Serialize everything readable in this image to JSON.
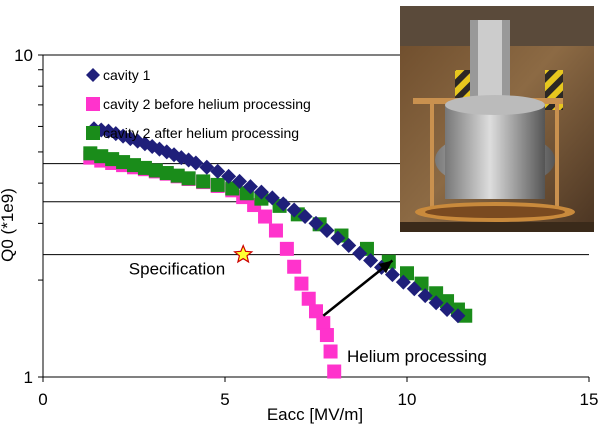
{
  "chart_data": {
    "type": "scatter",
    "title": "",
    "xlabel": "Eacc [MV/m]",
    "ylabel": "Q0 (*1e9)",
    "xlim": [
      0,
      15
    ],
    "ylim": [
      1,
      10
    ],
    "yscale": "log",
    "grid": "horizontal",
    "legend_position": "top-left",
    "x_ticks": [
      "0",
      "5",
      "10",
      "15"
    ],
    "y_ticks": [
      "1",
      "10"
    ],
    "series": [
      {
        "name": "cavity 1",
        "marker": "diamond",
        "color": "#1f1f7a",
        "x": [
          1.4,
          1.6,
          1.8,
          2.0,
          2.2,
          2.4,
          2.6,
          2.8,
          3.0,
          3.2,
          3.4,
          3.6,
          3.8,
          4.0,
          4.2,
          4.5,
          4.8,
          5.1,
          5.4,
          5.7,
          6.0,
          6.3,
          6.6,
          6.9,
          7.2,
          7.5,
          7.8,
          8.1,
          8.4,
          8.7,
          9.0,
          9.3,
          9.6,
          9.9,
          10.2,
          10.5,
          10.8,
          11.1,
          11.4
        ],
        "y": [
          5.9,
          5.85,
          5.8,
          5.7,
          5.6,
          5.5,
          5.4,
          5.3,
          5.2,
          5.1,
          5.0,
          4.9,
          4.8,
          4.72,
          4.62,
          4.48,
          4.35,
          4.2,
          4.05,
          3.9,
          3.75,
          3.6,
          3.45,
          3.3,
          3.15,
          3.0,
          2.85,
          2.7,
          2.56,
          2.42,
          2.3,
          2.19,
          2.08,
          1.97,
          1.88,
          1.79,
          1.7,
          1.62,
          1.55
        ]
      },
      {
        "name": "cavity 2 before helium processing",
        "marker": "square",
        "color": "#ff33cc",
        "x": [
          1.3,
          1.6,
          1.9,
          2.2,
          2.5,
          2.8,
          3.1,
          3.4,
          3.7,
          4.0,
          4.4,
          4.8,
          5.2,
          5.5,
          5.8,
          6.1,
          6.4,
          6.7,
          6.9,
          7.1,
          7.3,
          7.5,
          7.7,
          7.8,
          7.9,
          8.0
        ],
        "y": [
          4.8,
          4.7,
          4.62,
          4.55,
          4.48,
          4.42,
          4.35,
          4.28,
          4.2,
          4.12,
          4.03,
          3.92,
          3.8,
          3.62,
          3.42,
          3.15,
          2.85,
          2.5,
          2.2,
          1.95,
          1.75,
          1.6,
          1.47,
          1.35,
          1.2,
          1.04
        ]
      },
      {
        "name": "cavity 2 after helium processing",
        "marker": "square",
        "color": "#1a8c1a",
        "x": [
          1.3,
          1.6,
          1.9,
          2.2,
          2.5,
          2.8,
          3.1,
          3.4,
          3.7,
          4.0,
          4.4,
          4.8,
          5.2,
          5.6,
          6.0,
          6.5,
          7.0,
          7.6,
          8.2,
          8.9,
          9.5,
          10.0,
          10.4,
          10.8,
          11.1,
          11.4,
          11.6
        ],
        "y": [
          4.95,
          4.85,
          4.75,
          4.65,
          4.55,
          4.46,
          4.38,
          4.3,
          4.22,
          4.14,
          4.05,
          3.95,
          3.85,
          3.72,
          3.58,
          3.4,
          3.2,
          2.98,
          2.75,
          2.5,
          2.28,
          2.1,
          1.95,
          1.82,
          1.72,
          1.62,
          1.55
        ]
      }
    ],
    "annotations": [
      {
        "text": "Specification",
        "x": 5.5,
        "y": 2.4,
        "marker": "star"
      },
      {
        "text": "Helium processing",
        "arrow_from": [
          7.7,
          1.55
        ],
        "arrow_to": [
          9.6,
          2.3
        ]
      }
    ]
  },
  "colors": {
    "spec_star_fill": "#ffff33",
    "spec_star_stroke": "#cc0000",
    "gridline": "#000000",
    "photo_background": "#8a6a3a"
  },
  "inset_photo": {
    "icon": "cavity-photo",
    "description_alt": "photo"
  }
}
